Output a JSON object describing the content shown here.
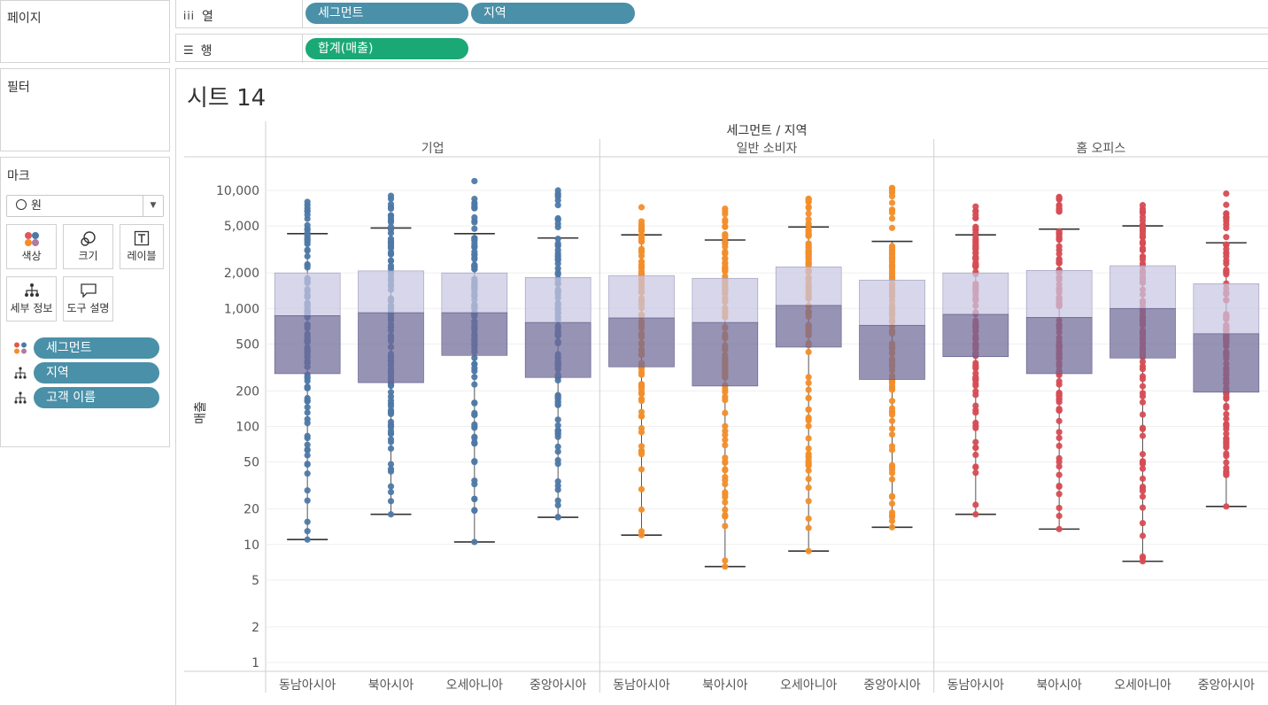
{
  "left_panel": {
    "pages_title": "페이지",
    "filters_title": "필터",
    "marks_title": "마크",
    "mark_type": "원",
    "mark_buttons": [
      "색상",
      "크기",
      "레이블",
      "세부 정보",
      "도구 설명"
    ],
    "mark_fields": [
      {
        "icon": "color-icon",
        "label": "세그먼트"
      },
      {
        "icon": "detail-icon",
        "label": "지역"
      },
      {
        "icon": "detail-icon",
        "label": "고객 이름"
      }
    ]
  },
  "shelves": {
    "columns_label": "열",
    "rows_label": "행",
    "columns_pills": [
      "세그먼트",
      "지역"
    ],
    "rows_pills": [
      "합계(매출)"
    ]
  },
  "sheet": {
    "title": "시트 14"
  },
  "chart_data": {
    "type": "scatter",
    "subtype": "box-plot-with-jittered-points",
    "header": "세그먼트 / 지역",
    "ylabel": "매출",
    "yscale": "log",
    "ylim": [
      0.8,
      14000
    ],
    "yticks": [
      1,
      2,
      5,
      10,
      20,
      50,
      100,
      200,
      500,
      1000,
      2000,
      5000,
      10000
    ],
    "ytick_labels": [
      "1",
      "2",
      "5",
      "10",
      "20",
      "50",
      "100",
      "200",
      "500",
      "1,000",
      "2,000",
      "5,000",
      "10,000"
    ],
    "grid": true,
    "segments": [
      {
        "name": "기업",
        "color": "#4e79a7",
        "regions": [
          {
            "name": "동남아시아",
            "min": 11,
            "q1": 280,
            "median": 870,
            "q3": 2000,
            "whisker_hi": 4300,
            "max": 8000
          },
          {
            "name": "북아시아",
            "min": 18,
            "q1": 235,
            "median": 920,
            "q3": 2080,
            "whisker_hi": 4800,
            "max": 9000
          },
          {
            "name": "오세아니아",
            "min": 10.5,
            "q1": 400,
            "median": 920,
            "q3": 2000,
            "whisker_hi": 4300,
            "max": 12000
          },
          {
            "name": "중앙아시아",
            "min": 17,
            "q1": 260,
            "median": 760,
            "q3": 1830,
            "whisker_hi": 3950,
            "max": 10000
          }
        ]
      },
      {
        "name": "일반 소비자",
        "color": "#f28e2b",
        "regions": [
          {
            "name": "동남아시아",
            "min": 12,
            "q1": 320,
            "median": 830,
            "q3": 1900,
            "whisker_hi": 4200,
            "max": 7200
          },
          {
            "name": "북아시아",
            "min": 6.5,
            "q1": 220,
            "median": 760,
            "q3": 1800,
            "whisker_hi": 3800,
            "max": 7000
          },
          {
            "name": "오세아니아",
            "min": 8.8,
            "q1": 470,
            "median": 1060,
            "q3": 2250,
            "whisker_hi": 4900,
            "max": 8500
          },
          {
            "name": "중앙아시아",
            "min": 14,
            "q1": 250,
            "median": 720,
            "q3": 1740,
            "whisker_hi": 3700,
            "max": 10500
          }
        ]
      },
      {
        "name": "홈 오피스",
        "color": "#d64d55",
        "regions": [
          {
            "name": "동남아시아",
            "min": 18,
            "q1": 390,
            "median": 890,
            "q3": 2000,
            "whisker_hi": 4200,
            "max": 7300
          },
          {
            "name": "북아시아",
            "min": 13.5,
            "q1": 280,
            "median": 840,
            "q3": 2100,
            "whisker_hi": 4700,
            "max": 8800
          },
          {
            "name": "오세아니아",
            "min": 7.2,
            "q1": 380,
            "median": 1000,
            "q3": 2300,
            "whisker_hi": 5000,
            "max": 7500
          },
          {
            "name": "중앙아시아",
            "min": 21,
            "q1": 195,
            "median": 610,
            "q3": 1620,
            "whisker_hi": 3600,
            "max": 9400
          }
        ]
      }
    ]
  }
}
